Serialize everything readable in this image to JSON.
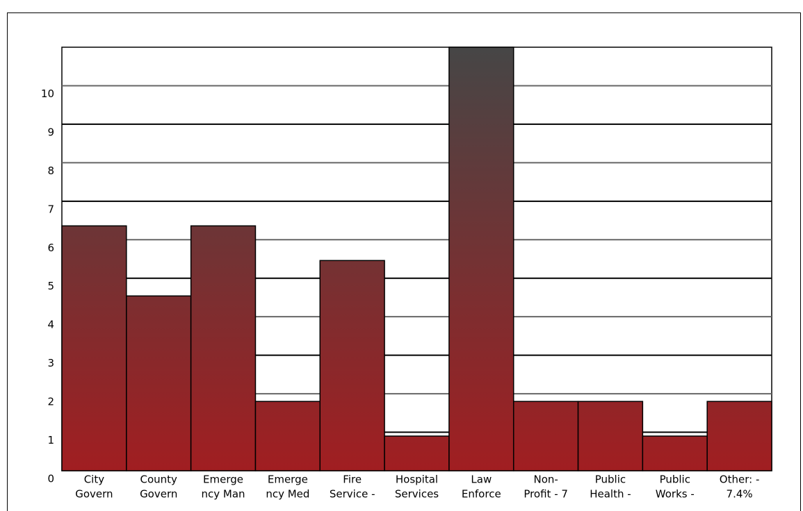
{
  "chart_data": {
    "type": "bar",
    "categories": [
      [
        "City",
        "Govern"
      ],
      [
        "County",
        "Govern"
      ],
      [
        "Emerge",
        "ncy Man"
      ],
      [
        "Emerge",
        "ncy Med"
      ],
      [
        "Fire",
        "Service -"
      ],
      [
        "Hospital",
        "Services"
      ],
      [
        "Law",
        "Enforce"
      ],
      [
        "Non-",
        "Profit - 7"
      ],
      [
        "Public",
        "Health -"
      ],
      [
        "Public",
        "Works -"
      ],
      [
        "Other: -",
        "7.4%"
      ]
    ],
    "values": [
      6.36,
      4.54,
      6.36,
      1.8,
      5.46,
      0.9,
      11,
      1.8,
      1.8,
      0.9,
      1.8
    ],
    "gradient": [
      "#464646",
      "#a11e21"
    ],
    "ylim": [
      0,
      11
    ],
    "yticks": [
      0,
      1,
      2,
      3,
      4,
      5,
      6,
      7,
      8,
      9,
      10
    ],
    "grid": true
  }
}
